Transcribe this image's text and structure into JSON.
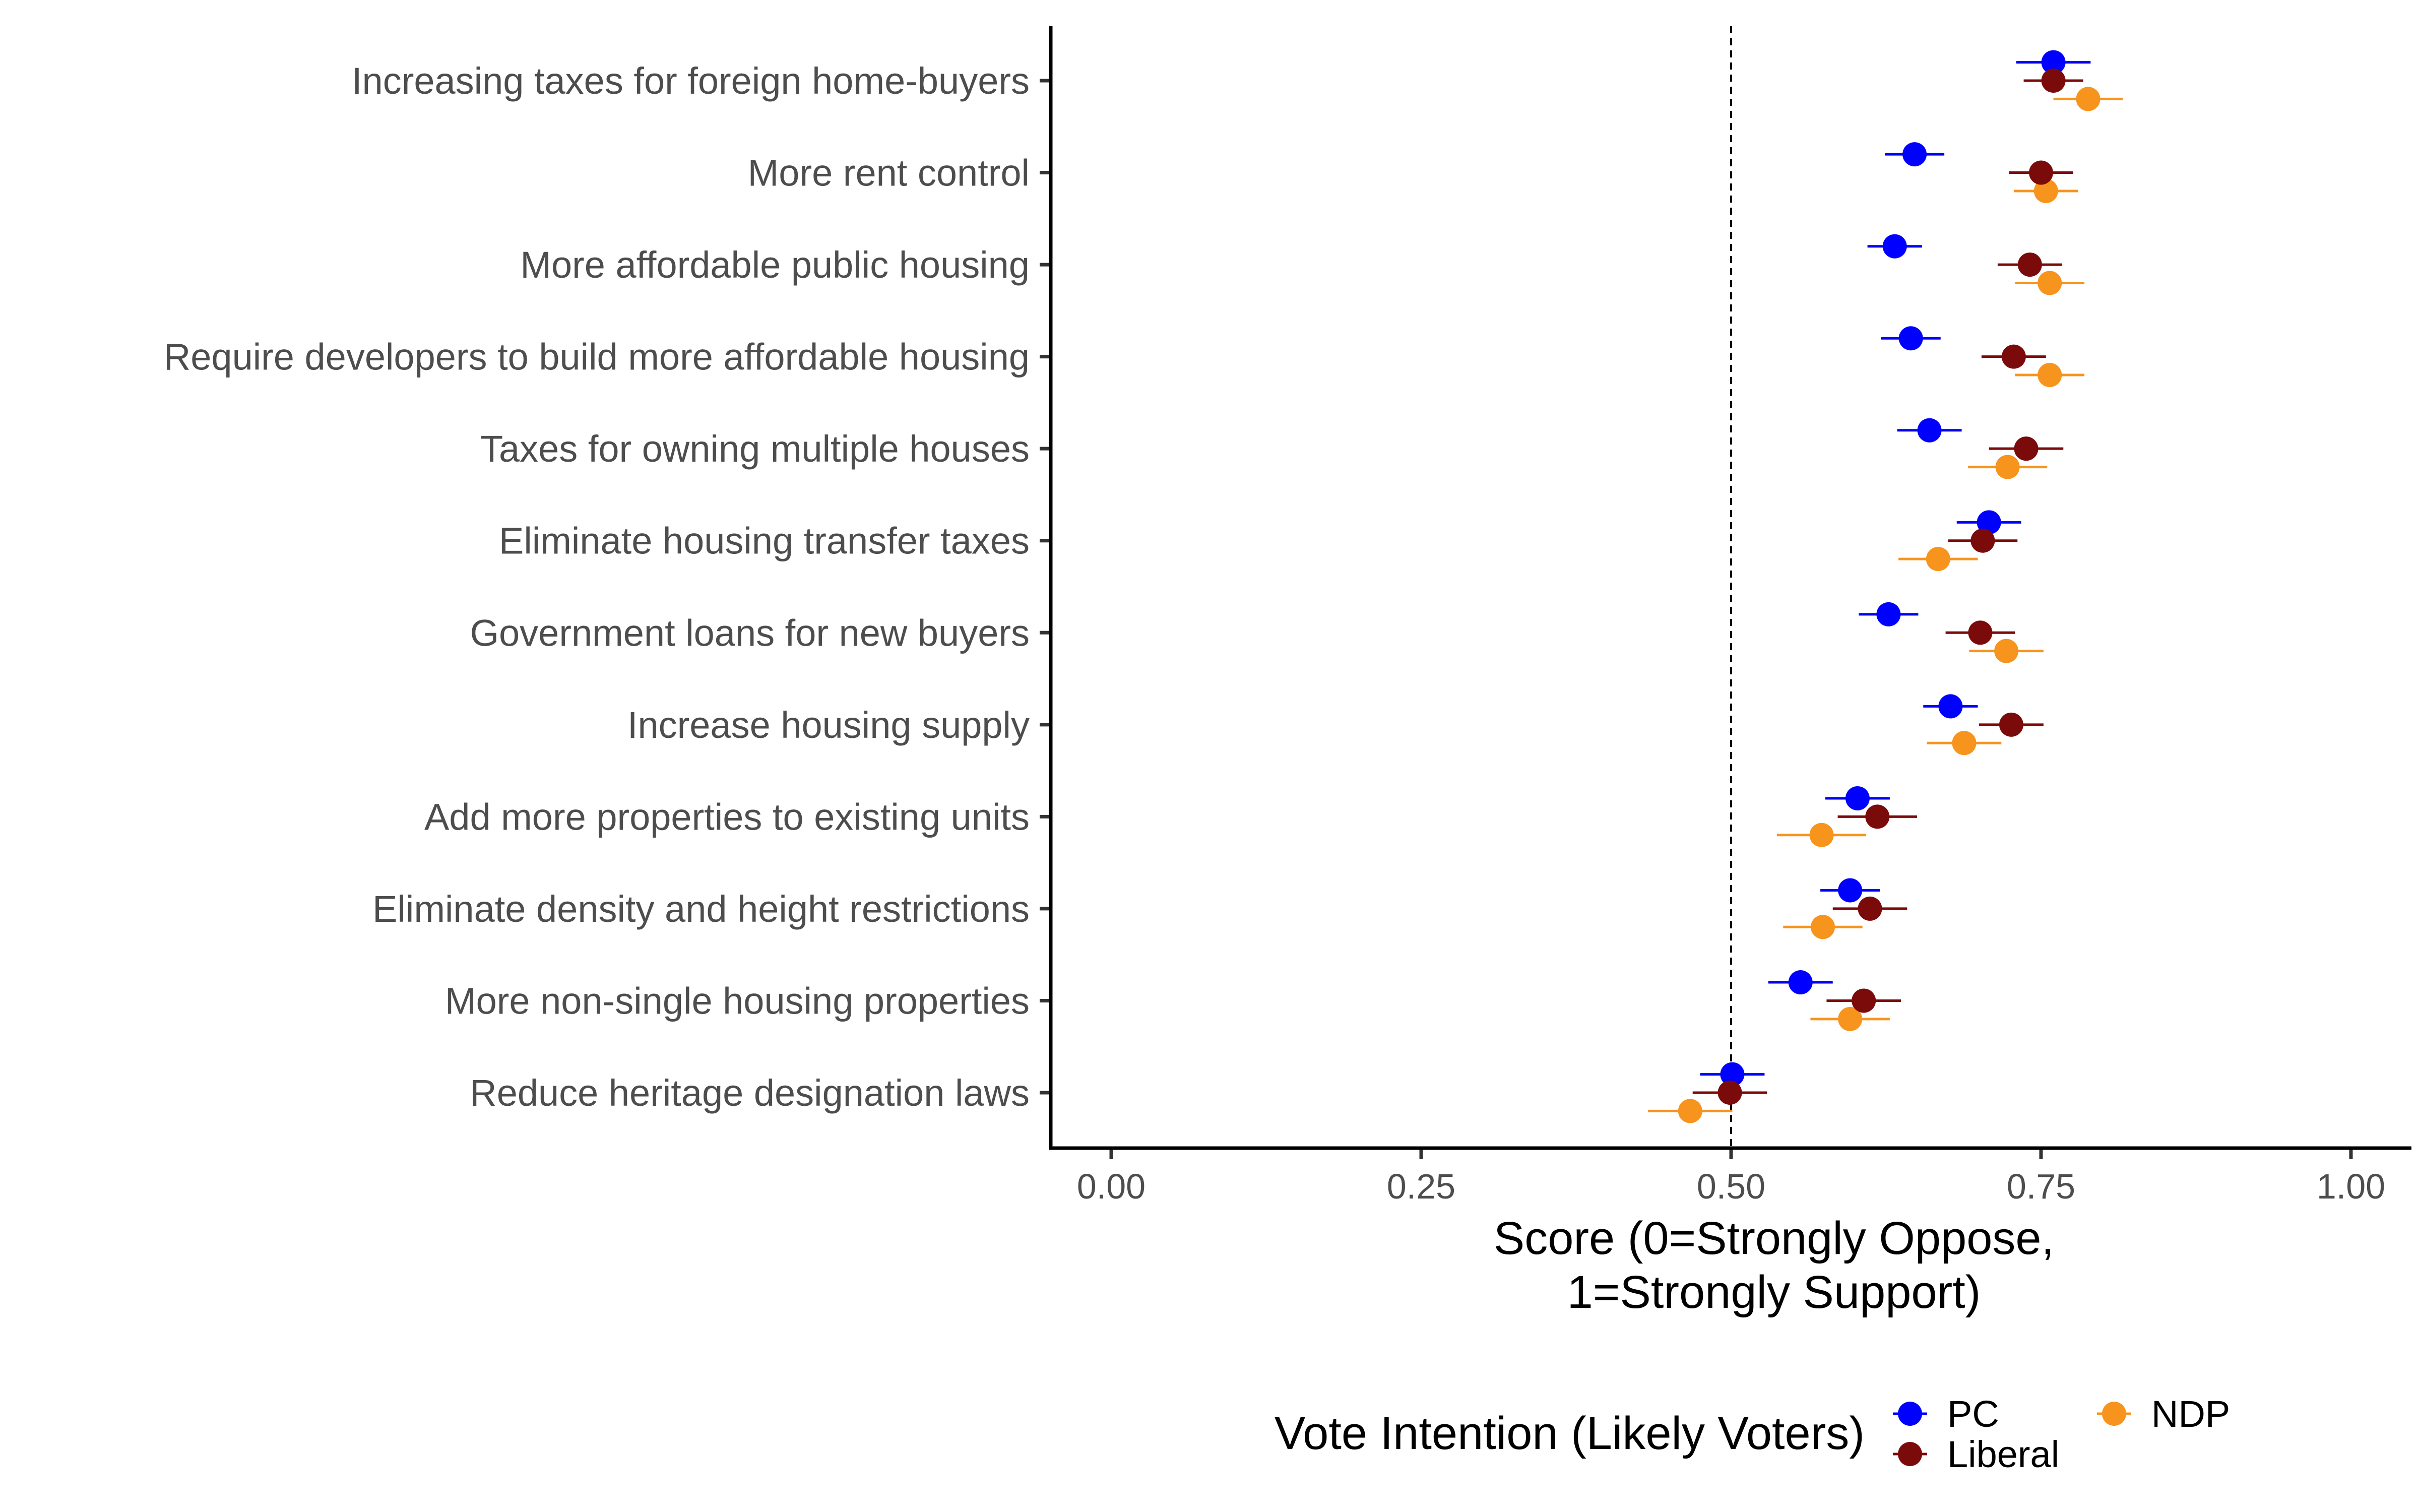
{
  "chart_data": {
    "type": "scatter",
    "subtype": "dot-plot-with-error-bars",
    "title": "",
    "xlabel_lines": [
      "Score (0=Strongly Oppose,",
      "1=Strongly Support)"
    ],
    "ylabel": "",
    "xlim": [
      -0.05,
      1.05
    ],
    "xticks": [
      0.0,
      0.25,
      0.5,
      0.75,
      1.0
    ],
    "xtick_labels": [
      "0.00",
      "0.25",
      "0.50",
      "0.75",
      "1.00"
    ],
    "reference_line": {
      "x": 0.5,
      "style": "dashed"
    },
    "grid": false,
    "legend": {
      "title": "Vote Intention (Likely Voters)",
      "position": "bottom"
    },
    "categories": [
      "Increasing taxes for foreign home-buyers",
      "More rent control",
      "More affordable public housing",
      "Require developers to build more affordable housing",
      "Taxes for owning multiple houses",
      "Eliminate housing transfer taxes",
      "Government loans for new buyers",
      "Increase housing supply",
      "Add more properties to existing units",
      "Eliminate density and height restrictions",
      "More non-single housing properties",
      "Reduce heritage designation laws"
    ],
    "series": [
      {
        "name": "PC",
        "color": "#0000ff",
        "offset": -0.2,
        "values": [
          0.76,
          0.648,
          0.632,
          0.645,
          0.66,
          0.708,
          0.627,
          0.677,
          0.602,
          0.596,
          0.556,
          0.501
        ],
        "ci_half": [
          0.03,
          0.024,
          0.022,
          0.024,
          0.026,
          0.026,
          0.024,
          0.022,
          0.026,
          0.024,
          0.026,
          0.026
        ]
      },
      {
        "name": "Liberal",
        "color": "#7b0a0a",
        "offset": 0.0,
        "values": [
          0.76,
          0.75,
          0.741,
          0.728,
          0.738,
          0.703,
          0.701,
          0.726,
          0.618,
          0.612,
          0.607,
          0.499
        ],
        "ci_half": [
          0.024,
          0.026,
          0.026,
          0.026,
          0.03,
          0.028,
          0.028,
          0.026,
          0.032,
          0.03,
          0.03,
          0.03
        ]
      },
      {
        "name": "NDP",
        "color": "#f7941d",
        "offset": 0.2,
        "values": [
          0.788,
          0.754,
          0.757,
          0.757,
          0.723,
          0.667,
          0.722,
          0.688,
          0.573,
          0.574,
          0.596,
          0.467
        ],
        "ci_half": [
          0.028,
          0.026,
          0.028,
          0.028,
          0.032,
          0.032,
          0.03,
          0.03,
          0.036,
          0.032,
          0.032,
          0.034
        ]
      }
    ]
  }
}
